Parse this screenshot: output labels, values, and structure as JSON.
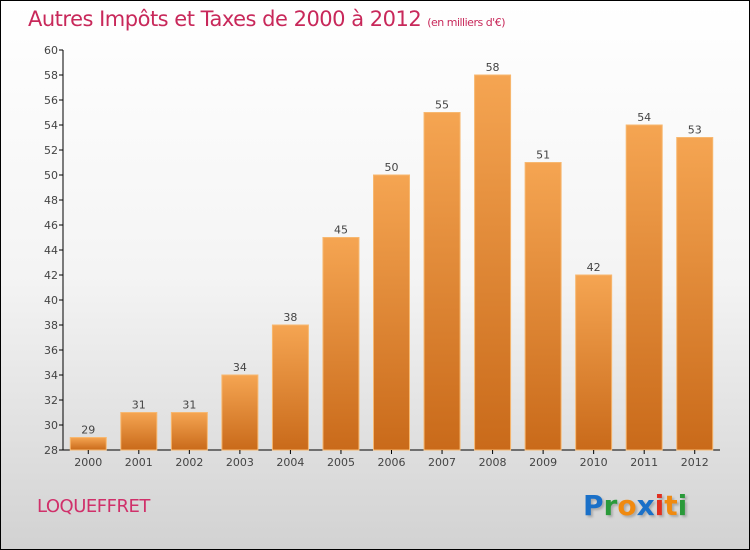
{
  "title": "Autres Impôts et Taxes de 2000 à 2012",
  "subtitle": "(en milliers d'€)",
  "town": "LOQUEFFRET",
  "logo": "Proxiti",
  "colors": {
    "bar_top": "#f5a552",
    "bar_bottom": "#c96a1a",
    "title": "#c8285a"
  },
  "chart_data": {
    "type": "bar",
    "title": "Autres Impôts et Taxes de 2000 à 2012",
    "ylabel": "(en milliers d'€)",
    "categories": [
      "2000",
      "2001",
      "2002",
      "2003",
      "2004",
      "2005",
      "2006",
      "2007",
      "2008",
      "2009",
      "2010",
      "2011",
      "2012"
    ],
    "values": [
      29,
      31,
      31,
      34,
      38,
      45,
      50,
      55,
      58,
      51,
      42,
      54,
      53
    ],
    "ylim": [
      28,
      60
    ],
    "yticks": [
      28,
      30,
      32,
      34,
      36,
      38,
      40,
      42,
      44,
      46,
      48,
      50,
      52,
      54,
      56,
      58,
      60
    ],
    "grid": false
  }
}
